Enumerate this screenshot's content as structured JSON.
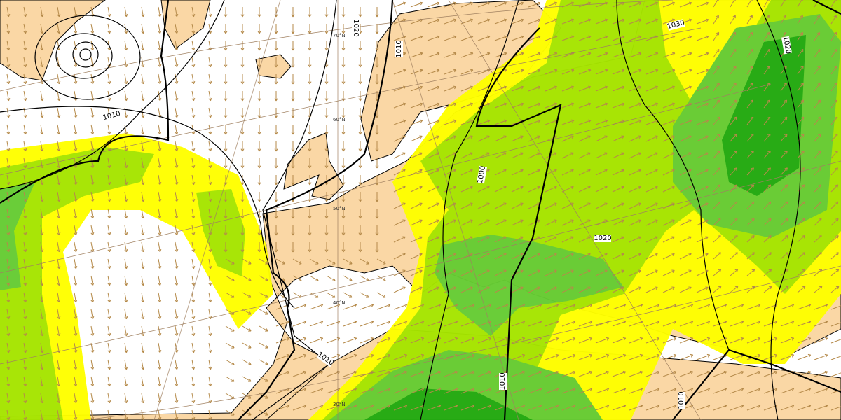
{
  "colors": {
    "ocean": "#ffffff",
    "land": "#fad7a5",
    "precip_1": "#ffff00",
    "precip_2": "#a6e500",
    "precip_3": "#66cc33",
    "precip_4": "#22aa11",
    "wind_arrow": "#b58a4a",
    "isobar": "#000000",
    "graticule": "#a08060"
  },
  "isobar_labels": [
    "1020",
    "1010",
    "1010",
    "1000",
    "1020",
    "1030",
    "1020",
    "1010",
    "1010",
    "1010"
  ],
  "latitude_labels": [
    "70°N",
    "60°N",
    "50°N",
    "40°N",
    "30°N"
  ],
  "icons": {
    "wind": "wind-arrow-icon",
    "low": "low-pressure-center"
  }
}
